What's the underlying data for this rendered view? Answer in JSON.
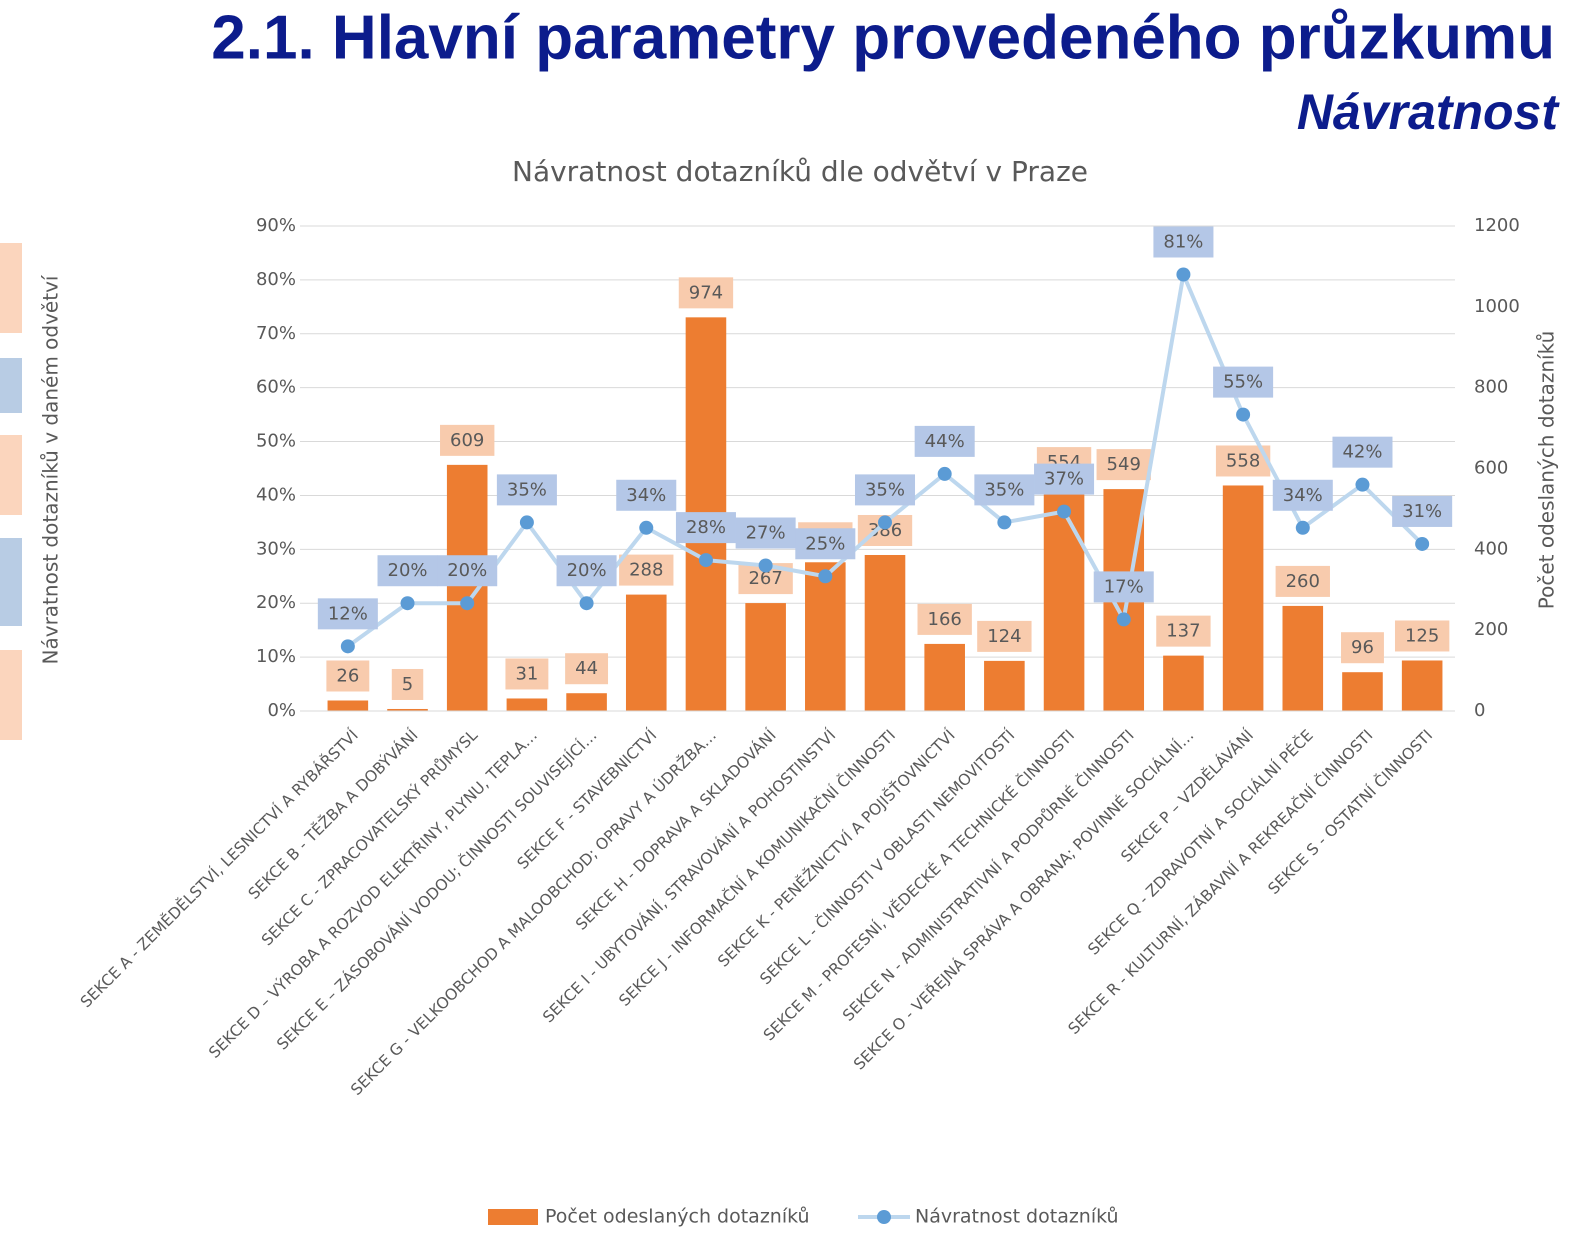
{
  "header": {
    "title": "2.1. Hlavní parametry provedeného průzkumu",
    "subtitle": "Návratnost"
  },
  "chart_data": {
    "type": "bar-line",
    "title": "Návratnost dotazníků dle odvětví v Praze",
    "y_label": "Návratnost dotazníků v daném odvětví",
    "y2_label": "Počet odeslaných dotazníků",
    "categories": [
      "SEKCE A - ZEMĚDĚLSTVÍ, LESNICTVÍ A RYBÁŘSTVÍ",
      "SEKCE B - TĚŽBA A DOBÝVÁNÍ",
      "SEKCE C - ZPRACOVATELSKÝ PRŮMYSL",
      "SEKCE D – VÝROBA A ROZVOD ELEKTŘINY, PLYNU, TEPLA…",
      "SEKCE E – ZÁSOBOVÁNÍ VODOU; ČINNOSTI SOUVISEJÍCÍ…",
      "SEKCE F - STAVEBNICTVÍ",
      "SEKCE G - VELKOOBCHOD A MALOOBCHOD; OPRAVY A ÚDRŽBA…",
      "SEKCE H - DOPRAVA A SKLADOVÁNÍ",
      "SEKCE I - UBYTOVÁNÍ, STRAVOVÁNÍ A POHOSTINSTVÍ",
      "SEKCE J - INFORMAČNÍ A KOMUNIKAČNÍ ČINNOSTI",
      "SEKCE K - PENĚŽNICTVÍ A POJIŠŤOVNICTVÍ",
      "SEKCE L - ČINNOSTI V OBLASTI NEMOVITOSTÍ",
      "SEKCE M - PROFESNÍ, VĚDECKÉ A TECHNICKÉ ČINNOSTI",
      "SEKCE N - ADMINISTRATIVNÍ A PODPŮRNÉ ČINNOSTI",
      "SEKCE O - VEŘEJNÁ SPRÁVA A OBRANA; POVINNÉ SOCIÁLNÍ…",
      "SEKCE P – VZDĚLÁVÁNÍ",
      "SEKCE Q - ZDRAVOTNÍ A SOCIÁLNÍ PÉČE",
      "SEKCE R - KULTURNÍ, ZÁBAVNÍ A REKREAČNÍ ČINNOSTI",
      "SEKCE S - OSTATNÍ ČINNOSTI"
    ],
    "series": [
      {
        "name": "Počet odeslaných dotazníků",
        "type": "bar",
        "axis": "y2",
        "color": "#ed7d31",
        "values": [
          26,
          5,
          609,
          31,
          44,
          288,
          974,
          267,
          368,
          386,
          166,
          124,
          554,
          549,
          137,
          558,
          260,
          96,
          125
        ]
      },
      {
        "name": "Návratnost dotazníků",
        "type": "line",
        "axis": "y",
        "color": "#5b9bd5",
        "values": [
          12,
          20,
          20,
          35,
          20,
          34,
          28,
          27,
          25,
          35,
          44,
          35,
          37,
          17,
          81,
          55,
          34,
          42,
          31
        ],
        "value_labels": [
          "12%",
          "20%",
          "20%",
          "35%",
          "20%",
          "34%",
          "28%",
          "27%",
          "25%",
          "35%",
          "44%",
          "35%",
          "37%",
          "17%",
          "81%",
          "55%",
          "34%",
          "42%",
          "31%"
        ]
      }
    ],
    "ylim": [
      0,
      90
    ],
    "yticks": [
      {
        "value": 0,
        "label": "0%"
      },
      {
        "value": 10,
        "label": "10%"
      },
      {
        "value": 20,
        "label": "20%"
      },
      {
        "value": 30,
        "label": "30%"
      },
      {
        "value": 40,
        "label": "40%"
      },
      {
        "value": 50,
        "label": "50%"
      },
      {
        "value": 60,
        "label": "60%"
      },
      {
        "value": 70,
        "label": "70%"
      },
      {
        "value": 80,
        "label": "80%"
      },
      {
        "value": 90,
        "label": "90%"
      }
    ],
    "y2lim": [
      0,
      1200
    ],
    "y2ticks": [
      0,
      200,
      400,
      600,
      800,
      1000,
      1200
    ],
    "grid": true,
    "legend": "bottom"
  }
}
